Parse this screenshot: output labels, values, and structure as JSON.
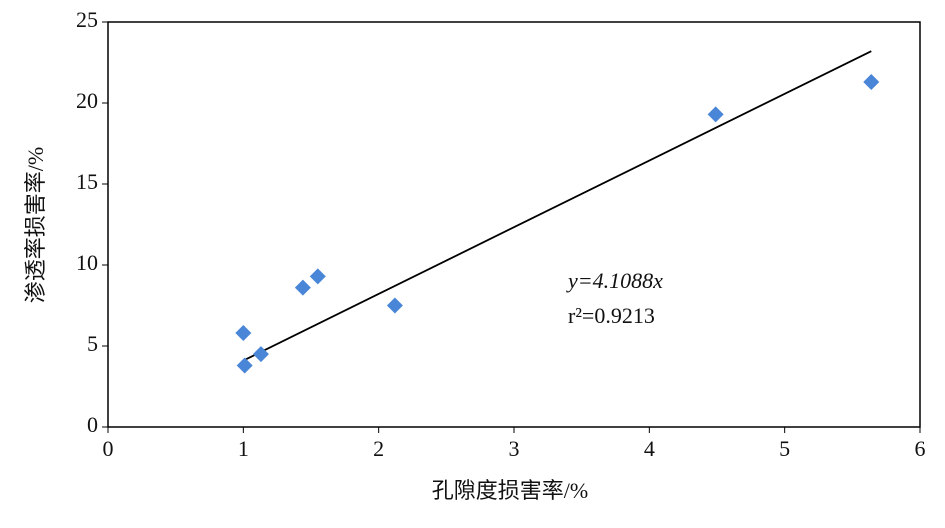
{
  "chart_data": {
    "type": "scatter",
    "x_label": "孔隙度损害率/%",
    "y_label": "渗透率损害率/%",
    "x": [
      1.0,
      1.01,
      1.13,
      1.44,
      1.55,
      2.12,
      4.49,
      5.64
    ],
    "values": [
      5.8,
      3.8,
      4.5,
      8.6,
      9.3,
      7.5,
      19.3,
      21.3
    ],
    "color": "#4a86d8",
    "xlim": [
      0,
      6
    ],
    "xticks": [
      0,
      1,
      2,
      3,
      4,
      5,
      6
    ],
    "ylim": [
      0,
      25
    ],
    "yticks": [
      0,
      5,
      10,
      15,
      20,
      25
    ],
    "trendline": {
      "x": [
        1.0,
        5.64
      ],
      "y": [
        4.1,
        23.2
      ],
      "color": "#000000"
    },
    "annotations": [
      "y=4.1088x",
      "r²=0.9213"
    ]
  }
}
